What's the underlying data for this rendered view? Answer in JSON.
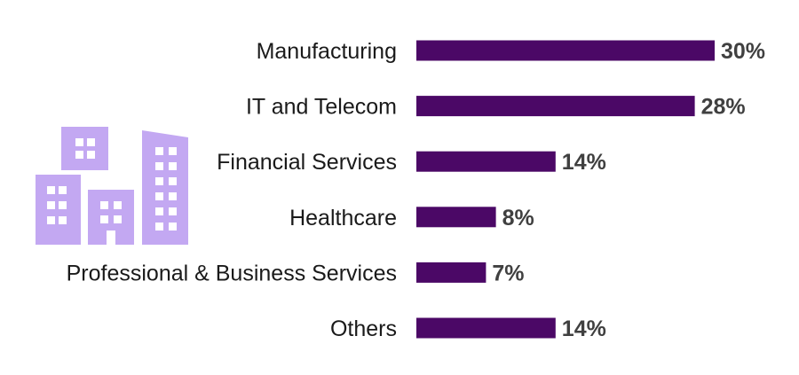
{
  "chart_data": {
    "type": "bar",
    "orientation": "horizontal",
    "categories": [
      "Manufacturing",
      "IT and Telecom",
      "Financial Services",
      "Healthcare",
      "Professional & Business Services",
      "Others"
    ],
    "values": [
      30,
      28,
      14,
      8,
      7,
      14
    ],
    "value_labels": [
      "30%",
      "28%",
      "14%",
      "8%",
      "7%",
      "14%"
    ],
    "unit": "%",
    "title": "",
    "xlabel": "",
    "ylabel": "",
    "xlim": [
      0,
      30
    ],
    "grid": false,
    "legend": "none",
    "bar_color": "#4b0866"
  },
  "decoration": {
    "icon": "buildings-icon",
    "icon_color": "#c3a8f2"
  }
}
